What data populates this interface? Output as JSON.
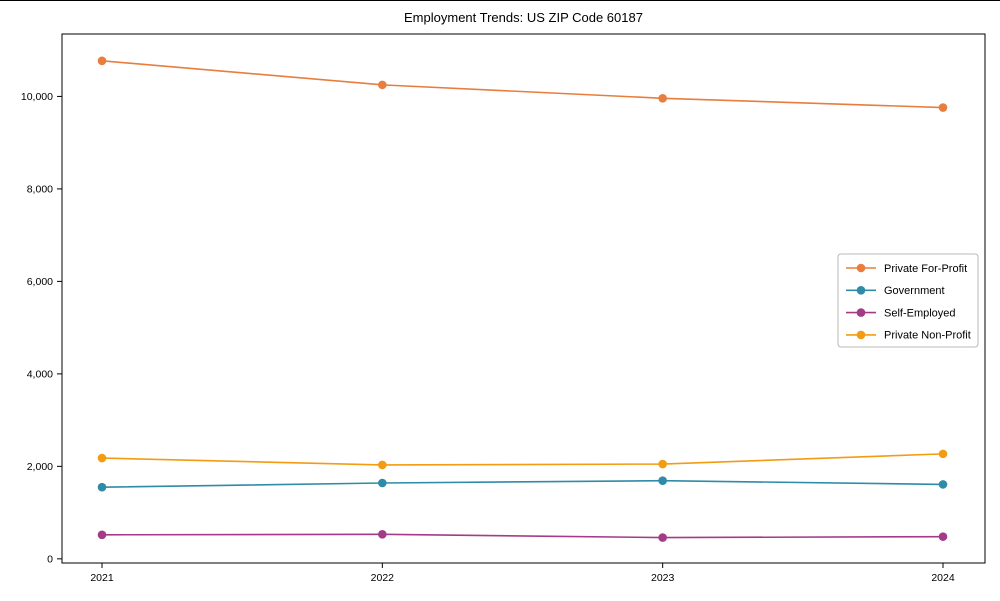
{
  "chart_data": {
    "type": "line",
    "title": "Employment Trends: US ZIP Code 60187",
    "xlabel": "",
    "ylabel": "",
    "x_tick_labels": [
      "2021",
      "2022",
      "2023",
      "2024"
    ],
    "y_ticks": [
      0,
      2000,
      4000,
      6000,
      8000,
      10000
    ],
    "y_tick_labels": [
      "0",
      "2,000",
      "4,000",
      "6,000",
      "8,000",
      "10,000"
    ],
    "ylim": [
      -90,
      11350
    ],
    "grid": false,
    "legend_position": "center-right",
    "series": [
      {
        "name": "Private For-Profit",
        "color": "#e87d3d",
        "values": [
          10770,
          10250,
          9960,
          9760
        ]
      },
      {
        "name": "Government",
        "color": "#2f8ba8",
        "values": [
          1550,
          1640,
          1690,
          1610
        ]
      },
      {
        "name": "Self-Employed",
        "color": "#a33b87",
        "values": [
          520,
          530,
          460,
          480
        ]
      },
      {
        "name": "Private Non-Profit",
        "color": "#f39c12",
        "values": [
          2180,
          2030,
          2050,
          2270
        ]
      }
    ],
    "axis_color": "#000000",
    "legend_border_color": "#b8b8b8"
  }
}
